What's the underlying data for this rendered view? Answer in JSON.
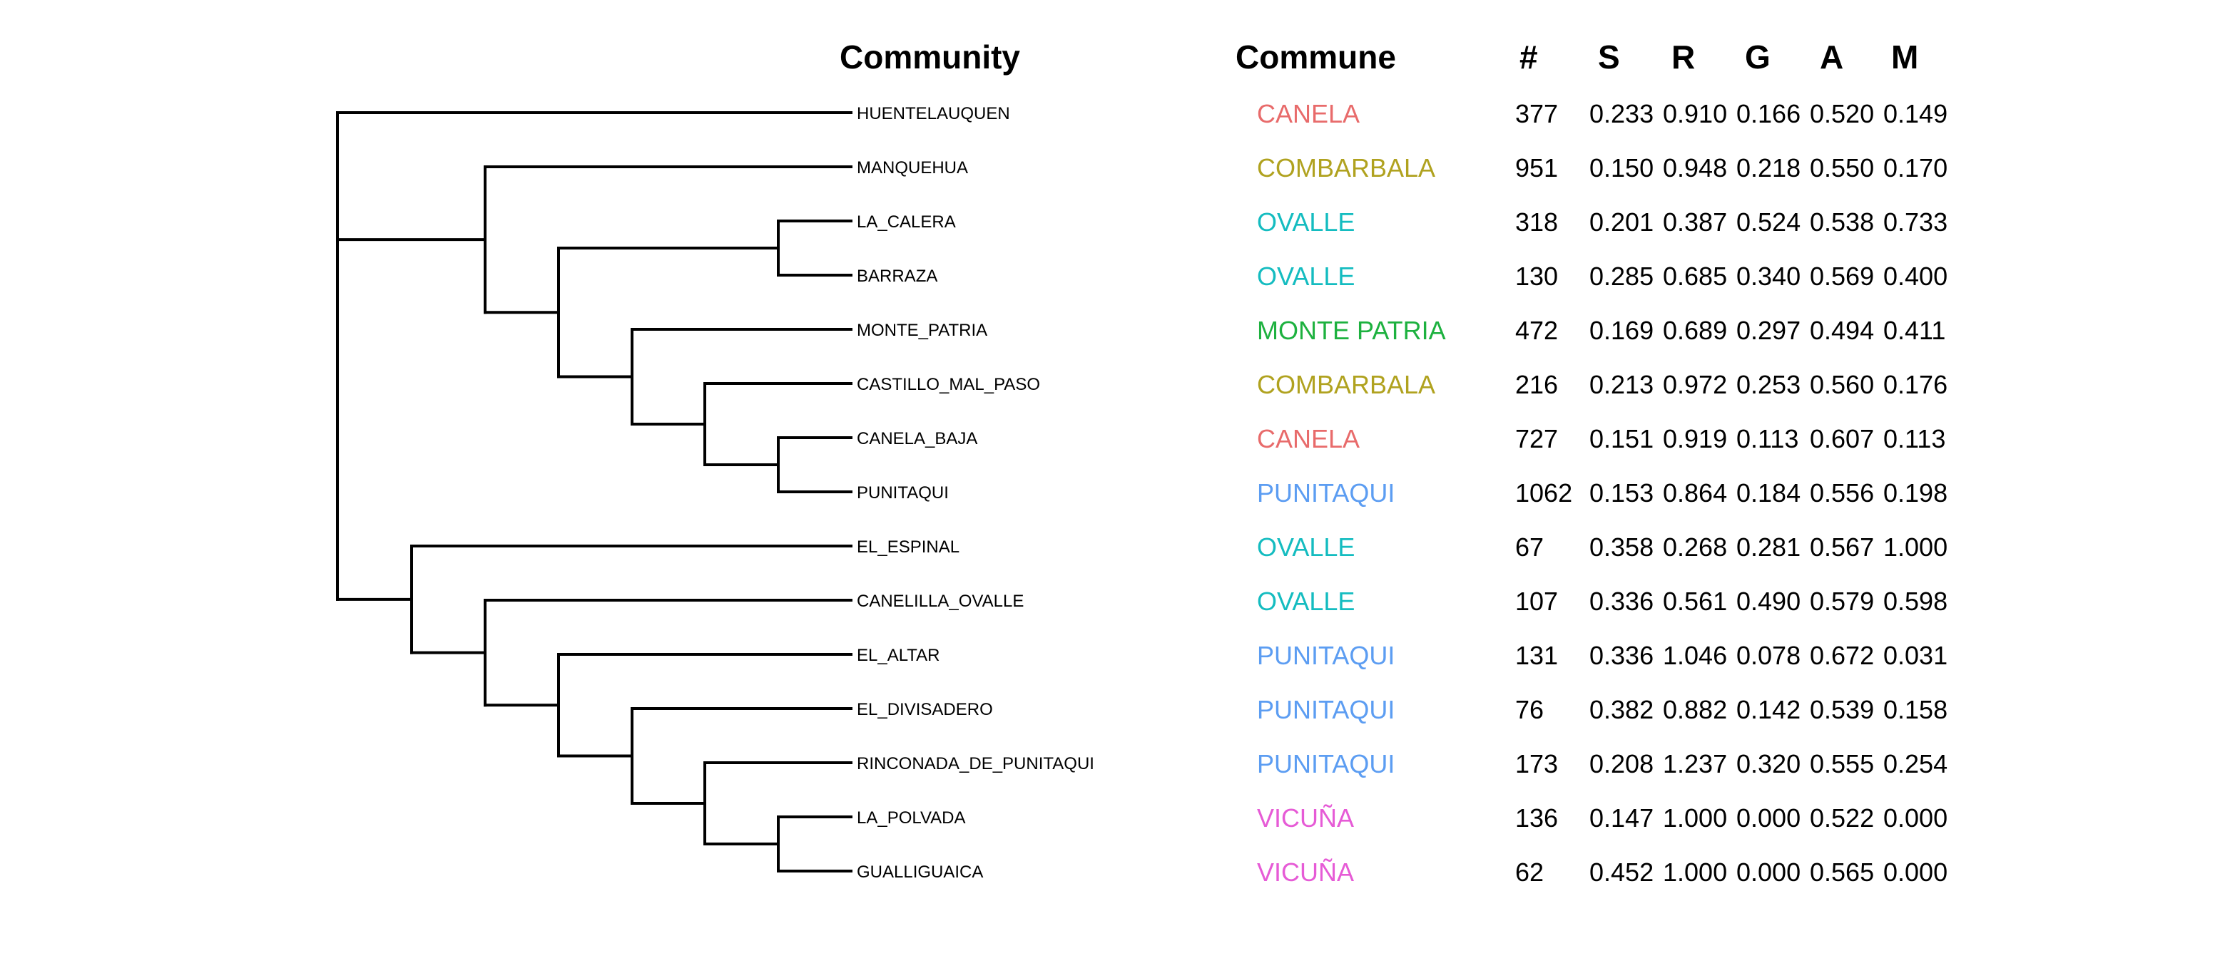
{
  "headers": {
    "community": "Community",
    "commune": "Commune",
    "count": "#",
    "s": "S",
    "r": "R",
    "g": "G",
    "a": "A",
    "m": "M"
  },
  "commune_colors": {
    "CANELA": "#E86B6B",
    "COMBARBALA": "#B0A21F",
    "OVALLE": "#14BCC0",
    "MONTE PATRIA": "#1DB13F",
    "PUNITAQUI": "#5C9DF2",
    "VICUÑA": "#E65BD6"
  },
  "line_color": "#000000",
  "rows": [
    {
      "community": "HUENTELAUQUEN",
      "commune": "CANELA",
      "count": "377",
      "S": "0.233",
      "R": "0.910",
      "G": "0.166",
      "A": "0.520",
      "M": "0.149"
    },
    {
      "community": "MANQUEHUA",
      "commune": "COMBARBALA",
      "count": "951",
      "S": "0.150",
      "R": "0.948",
      "G": "0.218",
      "A": "0.550",
      "M": "0.170"
    },
    {
      "community": "LA_CALERA",
      "commune": "OVALLE",
      "count": "318",
      "S": "0.201",
      "R": "0.387",
      "G": "0.524",
      "A": "0.538",
      "M": "0.733"
    },
    {
      "community": "BARRAZA",
      "commune": "OVALLE",
      "count": "130",
      "S": "0.285",
      "R": "0.685",
      "G": "0.340",
      "A": "0.569",
      "M": "0.400"
    },
    {
      "community": "MONTE_PATRIA",
      "commune": "MONTE PATRIA",
      "count": "472",
      "S": "0.169",
      "R": "0.689",
      "G": "0.297",
      "A": "0.494",
      "M": "0.411"
    },
    {
      "community": "CASTILLO_MAL_PASO",
      "commune": "COMBARBALA",
      "count": "216",
      "S": "0.213",
      "R": "0.972",
      "G": "0.253",
      "A": "0.560",
      "M": "0.176"
    },
    {
      "community": "CANELA_BAJA",
      "commune": "CANELA",
      "count": "727",
      "S": "0.151",
      "R": "0.919",
      "G": "0.113",
      "A": "0.607",
      "M": "0.113"
    },
    {
      "community": "PUNITAQUI",
      "commune": "PUNITAQUI",
      "count": "1062",
      "S": "0.153",
      "R": "0.864",
      "G": "0.184",
      "A": "0.556",
      "M": "0.198"
    },
    {
      "community": "EL_ESPINAL",
      "commune": "OVALLE",
      "count": "67",
      "S": "0.358",
      "R": "0.268",
      "G": "0.281",
      "A": "0.567",
      "M": "1.000"
    },
    {
      "community": "CANELILLA_OVALLE",
      "commune": "OVALLE",
      "count": "107",
      "S": "0.336",
      "R": "0.561",
      "G": "0.490",
      "A": "0.579",
      "M": "0.598"
    },
    {
      "community": "EL_ALTAR",
      "commune": "PUNITAQUI",
      "count": "131",
      "S": "0.336",
      "R": "1.046",
      "G": "0.078",
      "A": "0.672",
      "M": "0.031"
    },
    {
      "community": "EL_DIVISADERO",
      "commune": "PUNITAQUI",
      "count": "76",
      "S": "0.382",
      "R": "0.882",
      "G": "0.142",
      "A": "0.539",
      "M": "0.158"
    },
    {
      "community": "RINCONADA_DE_PUNITAQUI",
      "commune": "PUNITAQUI",
      "count": "173",
      "S": "0.208",
      "R": "1.237",
      "G": "0.320",
      "A": "0.555",
      "M": "0.254"
    },
    {
      "community": "LA_POLVADA",
      "commune": "VICUÑA",
      "count": "136",
      "S": "0.147",
      "R": "1.000",
      "G": "0.000",
      "A": "0.522",
      "M": "0.000"
    },
    {
      "community": "GUALLIGUAICA",
      "commune": "VICUÑA",
      "count": "62",
      "S": "0.452",
      "R": "1.000",
      "G": "0.000",
      "A": "0.565",
      "M": "0.000"
    }
  ]
}
